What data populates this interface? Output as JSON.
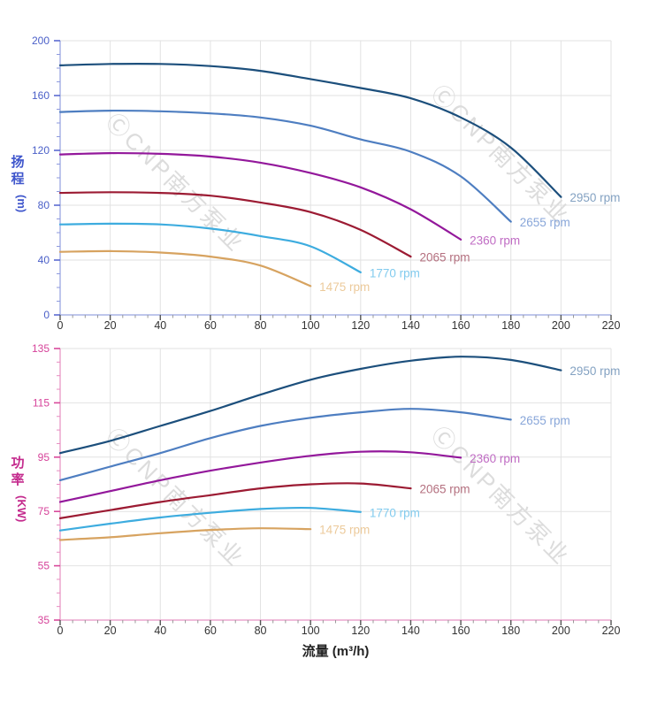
{
  "watermark": {
    "text": "ⒸCNP南方泵业",
    "color": "#dbdbdb"
  },
  "chart_data": [
    {
      "type": "line",
      "title": "",
      "xlabel": "",
      "ylabel": "扬程(m)",
      "ylabel_chars": [
        "扬",
        "程"
      ],
      "ylabel_unit": "(m)",
      "xlim": [
        0,
        220
      ],
      "ylim": [
        0,
        200
      ],
      "x_major": 20,
      "x_minor": 5,
      "y_major": 40,
      "y_minor": 10,
      "grid": true,
      "legend_position": "labels-at-line-ends",
      "axis_color": "#a8b4e6",
      "y_major_tick_color": "#5b6bd0",
      "y_minor_tick_color": "#8e9ade",
      "y_tick_label_color": "#4a5fc8",
      "ylabel_color": "#3f56cc",
      "x_tick_label_color": "#333333",
      "series": [
        {
          "name": "2950 rpm",
          "color": "#1c4f7c",
          "label_color": "#84a2c2",
          "x": [
            0,
            20,
            40,
            60,
            80,
            100,
            120,
            140,
            160,
            180,
            200
          ],
          "y": [
            182,
            183,
            183,
            181.5,
            178,
            172,
            165.5,
            158,
            144,
            122,
            86
          ]
        },
        {
          "name": "2655 rpm",
          "color": "#4e7ec1",
          "label_color": "#88a6d9",
          "x": [
            0,
            20,
            40,
            60,
            80,
            100,
            120,
            140,
            160,
            180
          ],
          "y": [
            148,
            149,
            148.5,
            147,
            144,
            138,
            128,
            119,
            101,
            68
          ]
        },
        {
          "name": "2360 rpm",
          "color": "#93189b",
          "label_color": "#c06cc4",
          "x": [
            0,
            20,
            40,
            60,
            80,
            100,
            120,
            140,
            160
          ],
          "y": [
            117,
            118,
            117.5,
            115.5,
            111,
            103.5,
            93,
            77,
            55
          ]
        },
        {
          "name": "2065 rpm",
          "color": "#9c1b33",
          "label_color": "#b4707f",
          "x": [
            0,
            20,
            40,
            60,
            80,
            100,
            120,
            140
          ],
          "y": [
            89,
            89.5,
            89,
            87,
            82,
            75,
            62,
            42.5
          ]
        },
        {
          "name": "1770 rpm",
          "color": "#3dacdf",
          "label_color": "#82cbee",
          "x": [
            0,
            20,
            40,
            60,
            80,
            100,
            120
          ],
          "y": [
            66,
            66.5,
            66,
            63,
            57.5,
            50,
            31
          ]
        },
        {
          "name": "1475 rpm",
          "color": "#d7a360",
          "label_color": "#ecca9b",
          "x": [
            0,
            20,
            40,
            60,
            80,
            100
          ],
          "y": [
            46,
            46.5,
            45.5,
            42.5,
            36,
            21
          ]
        }
      ]
    },
    {
      "type": "line",
      "title": "",
      "xlabel": "流量 (m³/h)",
      "ylabel": "功率(KW)",
      "ylabel_chars": [
        "功",
        "率"
      ],
      "ylabel_unit": "(KW)",
      "xlim": [
        0,
        220
      ],
      "ylim": [
        35,
        135
      ],
      "x_major": 20,
      "x_minor": 5,
      "y_major": 20,
      "y_minor": 5,
      "grid": true,
      "legend_position": "labels-at-line-ends",
      "axis_color": "#eba6cd",
      "y_major_tick_color": "#d84a9b",
      "y_minor_tick_color": "#e68cc0",
      "y_tick_label_color": "#d6439a",
      "ylabel_color": "#c42a8d",
      "x_tick_label_color": "#333333",
      "xlabel_color": "#222222",
      "series": [
        {
          "name": "2950 rpm",
          "color": "#1c4f7c",
          "label_color": "#84a2c2",
          "x": [
            0,
            20,
            40,
            60,
            80,
            100,
            120,
            140,
            160,
            180,
            200
          ],
          "y": [
            96.5,
            101,
            106.5,
            112,
            118,
            123.5,
            127.5,
            130.5,
            132,
            130.8,
            127
          ]
        },
        {
          "name": "2655 rpm",
          "color": "#4e7ec1",
          "label_color": "#88a6d9",
          "x": [
            0,
            20,
            40,
            60,
            80,
            100,
            120,
            140,
            160,
            180
          ],
          "y": [
            86.5,
            91.5,
            96.5,
            102,
            106.5,
            109.5,
            111.5,
            112.8,
            111.5,
            108.8
          ]
        },
        {
          "name": "2360 rpm",
          "color": "#93189b",
          "label_color": "#c06cc4",
          "x": [
            0,
            20,
            40,
            60,
            80,
            100,
            120,
            140,
            160
          ],
          "y": [
            78.5,
            82.5,
            86.5,
            90,
            93,
            95.5,
            97,
            96.8,
            94.8
          ]
        },
        {
          "name": "2065 rpm",
          "color": "#9c1b33",
          "label_color": "#b4707f",
          "x": [
            0,
            20,
            40,
            60,
            80,
            100,
            120,
            140
          ],
          "y": [
            72.5,
            75.5,
            78.5,
            81,
            83.5,
            85,
            85.3,
            83.5
          ]
        },
        {
          "name": "1770 rpm",
          "color": "#3dacdf",
          "label_color": "#82cbee",
          "x": [
            0,
            20,
            40,
            60,
            80,
            100,
            120
          ],
          "y": [
            68,
            70.5,
            72.8,
            74.5,
            75.9,
            76.3,
            74.8
          ]
        },
        {
          "name": "1475 rpm",
          "color": "#d7a360",
          "label_color": "#ecca9b",
          "x": [
            0,
            20,
            40,
            60,
            80,
            100
          ],
          "y": [
            64.5,
            65.5,
            67,
            68.2,
            68.8,
            68.5
          ]
        }
      ]
    }
  ]
}
